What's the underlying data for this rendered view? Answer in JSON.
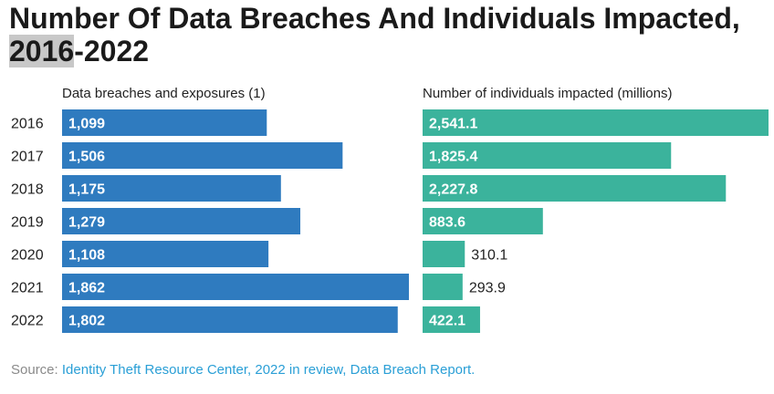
{
  "title_highlight": "2016",
  "title_line1": "Number Of Data Breaches And Individuals Impacted,",
  "title_rest": "-2022",
  "source_label": "Source:",
  "source_text": "Identity Theft Resource Center, 2022 in review, Data Breach Report.",
  "colors": {
    "breaches": "#2f7bbf",
    "individuals": "#3bb39c",
    "text": "#222222"
  },
  "chart_data": [
    {
      "type": "bar",
      "orientation": "horizontal",
      "title": "Data breaches and exposures (1)",
      "categories": [
        "2016",
        "2017",
        "2018",
        "2019",
        "2020",
        "2021",
        "2022"
      ],
      "values": [
        1099,
        1506,
        1175,
        1279,
        1108,
        1862,
        1802
      ],
      "labels": [
        "1,099",
        "1,506",
        "1,175",
        "1,279",
        "1,108",
        "1,862",
        "1,802"
      ],
      "xlim": [
        0,
        1862
      ]
    },
    {
      "type": "bar",
      "orientation": "horizontal",
      "title": "Number of individuals impacted (millions)",
      "categories": [
        "2016",
        "2017",
        "2018",
        "2019",
        "2020",
        "2021",
        "2022"
      ],
      "values": [
        2541.1,
        1825.4,
        2227.8,
        883.6,
        310.1,
        293.9,
        422.1
      ],
      "labels": [
        "2,541.1",
        "1,825.4",
        "2,227.8",
        "883.6",
        "310.1",
        "293.9",
        "422.1"
      ],
      "xlim": [
        0,
        2541.1
      ]
    }
  ]
}
